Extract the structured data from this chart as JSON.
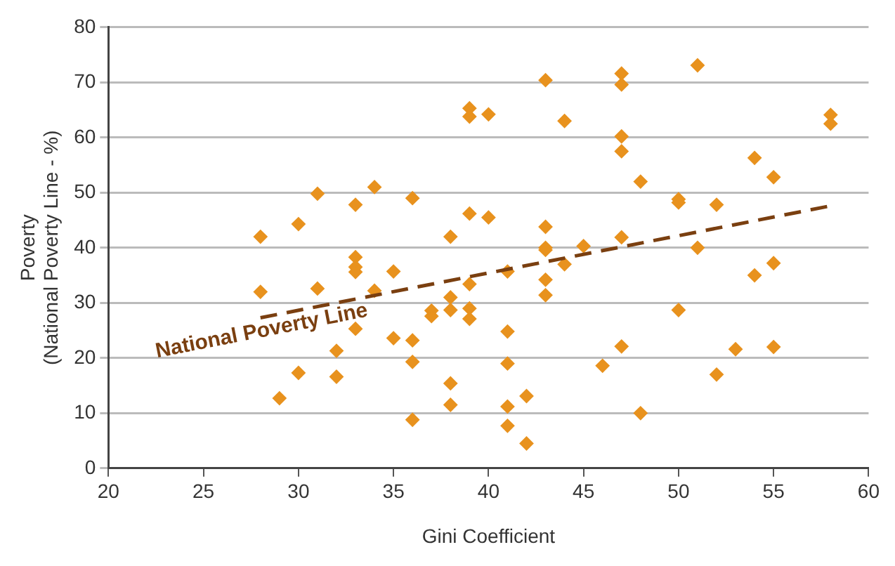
{
  "chart_data": {
    "type": "scatter",
    "xlabel": "Gini Coefficient",
    "ylabel": "Poverty\n(National Poverty Line - %)",
    "xlim": [
      20,
      60
    ],
    "xticks": [
      20,
      25,
      30,
      35,
      40,
      45,
      50,
      55,
      60
    ],
    "ylim": [
      0,
      80
    ],
    "yticks": [
      0,
      10,
      20,
      30,
      40,
      50,
      60,
      70,
      80
    ],
    "grid": "y",
    "legend": false,
    "series": [
      {
        "color": "#e8921e",
        "marker": "diamond",
        "x": [
          28,
          28,
          29,
          30,
          30,
          31,
          31,
          32,
          32,
          33,
          33,
          33,
          33,
          33,
          34,
          34,
          35,
          35,
          36,
          36,
          36,
          36,
          37,
          37,
          38,
          38,
          38,
          38,
          38,
          39,
          39,
          39,
          39,
          39,
          39,
          40,
          40,
          41,
          41,
          41,
          41,
          41,
          42,
          42,
          43,
          43,
          43,
          43,
          43,
          43,
          44,
          44,
          45,
          46,
          47,
          47,
          47,
          47,
          47,
          47,
          48,
          48,
          50,
          50,
          50,
          51,
          51,
          52,
          52,
          53,
          54,
          54,
          55,
          55,
          55,
          58,
          58
        ],
        "values": [
          42,
          32,
          12.7,
          44.3,
          17.3,
          49.8,
          32.6,
          21.3,
          16.6,
          47.8,
          38.3,
          36.5,
          35.6,
          25.3,
          51,
          32.2,
          35.7,
          23.6,
          49,
          23.2,
          19.3,
          8.8,
          28.6,
          27.6,
          42,
          31,
          28.7,
          15.4,
          11.5,
          65.3,
          63.8,
          46.2,
          33.4,
          29,
          27.1,
          64.2,
          45.5,
          35.7,
          24.8,
          19,
          11.2,
          7.7,
          13.1,
          4.5,
          70.4,
          43.8,
          40,
          39.6,
          34.2,
          31.4,
          63,
          37,
          40.3,
          18.6,
          71.6,
          69.6,
          60.2,
          57.5,
          41.9,
          22.1,
          52,
          10,
          48.8,
          48.2,
          28.7,
          73.1,
          40,
          47.8,
          17,
          21.6,
          56.3,
          35,
          52.8,
          37.2,
          22,
          64.1,
          62.5
        ]
      },
      {
        "type": "line",
        "name": "National Poverty Line",
        "color": "#7a3f10",
        "line_style": "dashed",
        "marker": "none",
        "x": [
          28,
          58
        ],
        "values": [
          27.3,
          47.6
        ]
      }
    ]
  }
}
